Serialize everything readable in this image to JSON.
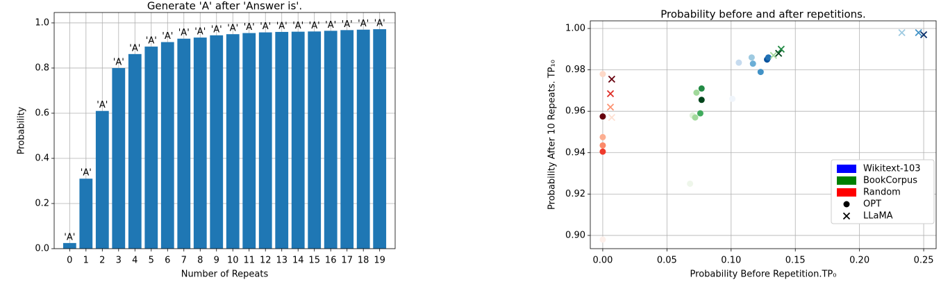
{
  "chart_data": [
    {
      "type": "bar",
      "title": "Generate 'A' after 'Answer is'.",
      "x_label": "Number of Repeats",
      "y_label": "Probability",
      "categories": [
        "0",
        "1",
        "2",
        "3",
        "4",
        "5",
        "6",
        "7",
        "8",
        "9",
        "10",
        "11",
        "12",
        "13",
        "14",
        "15",
        "16",
        "17",
        "18",
        "19"
      ],
      "values": [
        0.025,
        0.31,
        0.61,
        0.8,
        0.862,
        0.895,
        0.915,
        0.93,
        0.935,
        0.945,
        0.95,
        0.955,
        0.958,
        0.96,
        0.961,
        0.962,
        0.965,
        0.968,
        0.97,
        0.972
      ],
      "value_labels": [
        "'A'",
        "'A'",
        "'A'",
        "'A'",
        "'A'",
        "'A'",
        "'A'",
        "'A'",
        "'A'",
        "'A'",
        "'A'",
        "'A'",
        "'A'",
        "'A'",
        "'A'",
        "'A'",
        "'A'",
        "'A'",
        "'A'",
        "'A'"
      ],
      "color": "#1f77b4",
      "ylim": [
        0,
        1.046
      ],
      "yticks": [
        {
          "value": 0,
          "label": "0.0"
        },
        0.2,
        0.4,
        0.6,
        0.8,
        {
          "value": 1,
          "label": "1.0"
        }
      ],
      "grid": true
    },
    {
      "type": "scatter",
      "title": "Probability before and after repetitions.",
      "x_label": "Probability Before Repetition.TP₀",
      "y_label": "Probability After 10 Repeats. TP₁₀",
      "xlim": [
        -0.0097,
        0.2597
      ],
      "ylim": [
        0.8936,
        1.0037
      ],
      "xticks": [
        {
          "value": 0,
          "label": "0.00"
        },
        {
          "value": 0.05,
          "label": "0.05"
        },
        {
          "value": 0.1,
          "label": "0.10"
        },
        {
          "value": 0.15,
          "label": "0.15"
        },
        {
          "value": 0.2,
          "label": "0.20"
        },
        {
          "value": 0.25,
          "label": "0.25"
        }
      ],
      "yticks": [
        {
          "value": 0.9,
          "label": "0.90"
        },
        0.92,
        0.94,
        0.96,
        0.98,
        {
          "value": 1,
          "label": "1.00"
        }
      ],
      "grid": true,
      "legend_position": "lower right",
      "legend": [
        {
          "label": "Wikitext-103",
          "color": "#0000ff",
          "marker": "patch"
        },
        {
          "label": "BookCorpus",
          "color": "#008000",
          "marker": "patch"
        },
        {
          "label": "Random",
          "color": "#ff0000",
          "marker": "patch"
        },
        {
          "label": "OPT",
          "color": "#000000",
          "marker": "o"
        },
        {
          "label": "LLaMA",
          "color": "#000000",
          "marker": "x"
        }
      ],
      "series": [
        {
          "marker": "o",
          "x": [
            0.101,
            0.106,
            0.116,
            0.117,
            0.123,
            0.128,
            0.129
          ],
          "y": [
            0.966,
            0.9835,
            0.986,
            0.983,
            0.979,
            0.985,
            0.986
          ],
          "colors": [
            "#f0f5fb",
            "#c6dbef",
            "#9ecae1",
            "#6baed6",
            "#4292c6",
            "#08519c",
            "#2171b5"
          ]
        },
        {
          "marker": "x",
          "x": [
            0.233,
            0.246,
            0.25
          ],
          "y": [
            0.998,
            0.998,
            0.997
          ],
          "colors": [
            "#9ecae1",
            "#4292c6",
            "#08306b"
          ]
        },
        {
          "marker": "o",
          "x": [
            0.068,
            0.07,
            0.072,
            0.073,
            0.076,
            0.077,
            0.077
          ],
          "y": [
            0.925,
            0.958,
            0.957,
            0.969,
            0.959,
            0.971,
            0.9655
          ],
          "colors": [
            "#eef6ea",
            "#dff1d9",
            "#a1d99b",
            "#a1d99b",
            "#41ab5d",
            "#238b45",
            "#00441b"
          ]
        },
        {
          "marker": "x",
          "x": [
            0.133,
            0.137,
            0.139
          ],
          "y": [
            0.987,
            0.988,
            0.99
          ],
          "colors": [
            "#a1d99b",
            "#00441b",
            "#238b45"
          ]
        },
        {
          "marker": "o",
          "x": [
            0,
            0,
            0,
            0,
            0,
            0
          ],
          "y": [
            0.898,
            0.978,
            0.9475,
            0.9435,
            0.9405,
            0.9575
          ],
          "colors": [
            "#fdf0eb",
            "#fdd9c8",
            "#fcae91",
            "#fb8a6a",
            "#ef3b2c",
            "#67000d"
          ]
        },
        {
          "marker": "x",
          "x": [
            0.007,
            0.006,
            0.006,
            0.007
          ],
          "y": [
            0.9755,
            0.9685,
            0.962,
            0.957
          ],
          "colors": [
            "#67000d",
            "#de2d26",
            "#fc9272",
            "#fee0d2"
          ]
        }
      ]
    }
  ]
}
